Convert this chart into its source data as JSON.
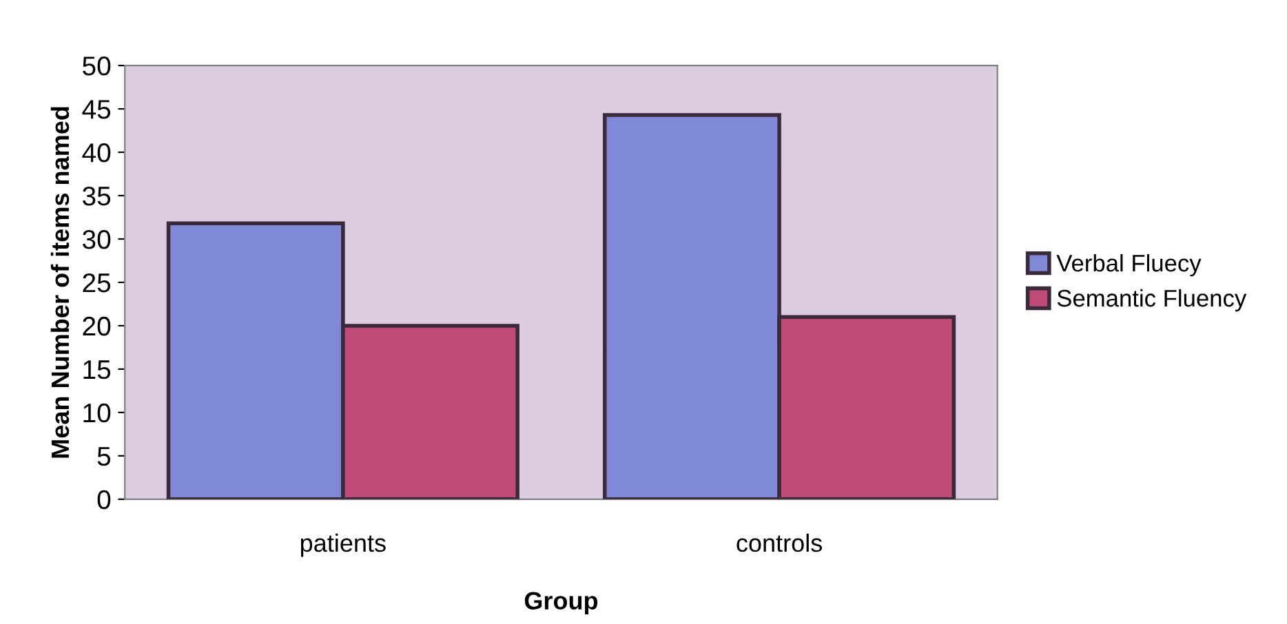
{
  "chart_data": {
    "type": "bar",
    "xlabel": "Group",
    "ylabel": "Mean Number of items named",
    "categories": [
      "patients",
      "controls"
    ],
    "series": [
      {
        "name": "Verbal Fluecy",
        "color": "#8088d8",
        "values": [
          31.8,
          44.3
        ]
      },
      {
        "name": "Semantic Fluency",
        "color": "#c04a78",
        "values": [
          20,
          21
        ]
      }
    ],
    "ylim": [
      0,
      50
    ],
    "yticks": [
      0,
      5,
      10,
      15,
      20,
      25,
      30,
      35,
      40,
      45,
      50
    ],
    "grid": false,
    "legend": "right"
  }
}
